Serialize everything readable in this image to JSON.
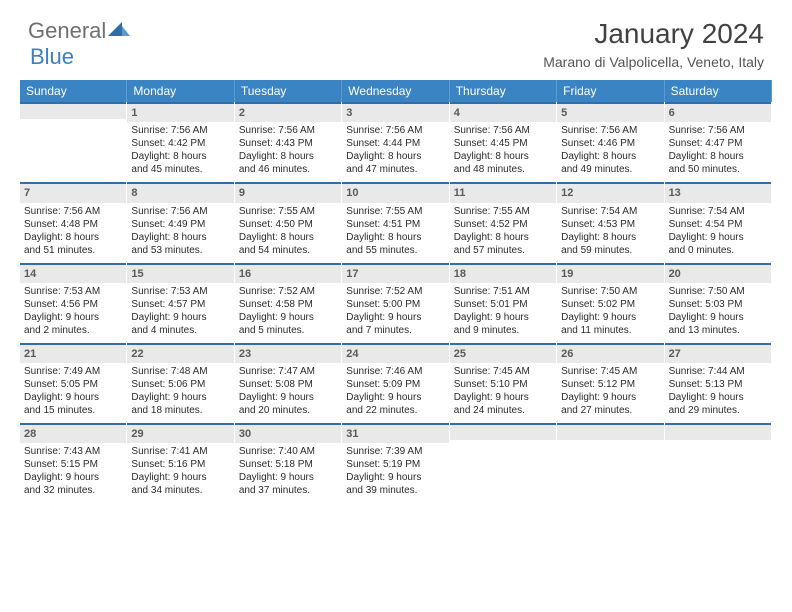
{
  "brand": {
    "part1": "General",
    "part2": "Blue"
  },
  "title": "January 2024",
  "subtitle": "Marano di Valpolicella, Veneto, Italy",
  "colors": {
    "header_bar": "#3b84c4",
    "band_bg": "#e9e9e9",
    "band_border": "#2f6ea8",
    "logo_gray": "#6f6f6f",
    "logo_blue": "#3b7fc4"
  },
  "dow": [
    "Sunday",
    "Monday",
    "Tuesday",
    "Wednesday",
    "Thursday",
    "Friday",
    "Saturday"
  ],
  "weeks": [
    [
      null,
      {
        "n": "1",
        "sr": "Sunrise: 7:56 AM",
        "ss": "Sunset: 4:42 PM",
        "d1": "Daylight: 8 hours",
        "d2": "and 45 minutes."
      },
      {
        "n": "2",
        "sr": "Sunrise: 7:56 AM",
        "ss": "Sunset: 4:43 PM",
        "d1": "Daylight: 8 hours",
        "d2": "and 46 minutes."
      },
      {
        "n": "3",
        "sr": "Sunrise: 7:56 AM",
        "ss": "Sunset: 4:44 PM",
        "d1": "Daylight: 8 hours",
        "d2": "and 47 minutes."
      },
      {
        "n": "4",
        "sr": "Sunrise: 7:56 AM",
        "ss": "Sunset: 4:45 PM",
        "d1": "Daylight: 8 hours",
        "d2": "and 48 minutes."
      },
      {
        "n": "5",
        "sr": "Sunrise: 7:56 AM",
        "ss": "Sunset: 4:46 PM",
        "d1": "Daylight: 8 hours",
        "d2": "and 49 minutes."
      },
      {
        "n": "6",
        "sr": "Sunrise: 7:56 AM",
        "ss": "Sunset: 4:47 PM",
        "d1": "Daylight: 8 hours",
        "d2": "and 50 minutes."
      }
    ],
    [
      {
        "n": "7",
        "sr": "Sunrise: 7:56 AM",
        "ss": "Sunset: 4:48 PM",
        "d1": "Daylight: 8 hours",
        "d2": "and 51 minutes."
      },
      {
        "n": "8",
        "sr": "Sunrise: 7:56 AM",
        "ss": "Sunset: 4:49 PM",
        "d1": "Daylight: 8 hours",
        "d2": "and 53 minutes."
      },
      {
        "n": "9",
        "sr": "Sunrise: 7:55 AM",
        "ss": "Sunset: 4:50 PM",
        "d1": "Daylight: 8 hours",
        "d2": "and 54 minutes."
      },
      {
        "n": "10",
        "sr": "Sunrise: 7:55 AM",
        "ss": "Sunset: 4:51 PM",
        "d1": "Daylight: 8 hours",
        "d2": "and 55 minutes."
      },
      {
        "n": "11",
        "sr": "Sunrise: 7:55 AM",
        "ss": "Sunset: 4:52 PM",
        "d1": "Daylight: 8 hours",
        "d2": "and 57 minutes."
      },
      {
        "n": "12",
        "sr": "Sunrise: 7:54 AM",
        "ss": "Sunset: 4:53 PM",
        "d1": "Daylight: 8 hours",
        "d2": "and 59 minutes."
      },
      {
        "n": "13",
        "sr": "Sunrise: 7:54 AM",
        "ss": "Sunset: 4:54 PM",
        "d1": "Daylight: 9 hours",
        "d2": "and 0 minutes."
      }
    ],
    [
      {
        "n": "14",
        "sr": "Sunrise: 7:53 AM",
        "ss": "Sunset: 4:56 PM",
        "d1": "Daylight: 9 hours",
        "d2": "and 2 minutes."
      },
      {
        "n": "15",
        "sr": "Sunrise: 7:53 AM",
        "ss": "Sunset: 4:57 PM",
        "d1": "Daylight: 9 hours",
        "d2": "and 4 minutes."
      },
      {
        "n": "16",
        "sr": "Sunrise: 7:52 AM",
        "ss": "Sunset: 4:58 PM",
        "d1": "Daylight: 9 hours",
        "d2": "and 5 minutes."
      },
      {
        "n": "17",
        "sr": "Sunrise: 7:52 AM",
        "ss": "Sunset: 5:00 PM",
        "d1": "Daylight: 9 hours",
        "d2": "and 7 minutes."
      },
      {
        "n": "18",
        "sr": "Sunrise: 7:51 AM",
        "ss": "Sunset: 5:01 PM",
        "d1": "Daylight: 9 hours",
        "d2": "and 9 minutes."
      },
      {
        "n": "19",
        "sr": "Sunrise: 7:50 AM",
        "ss": "Sunset: 5:02 PM",
        "d1": "Daylight: 9 hours",
        "d2": "and 11 minutes."
      },
      {
        "n": "20",
        "sr": "Sunrise: 7:50 AM",
        "ss": "Sunset: 5:03 PM",
        "d1": "Daylight: 9 hours",
        "d2": "and 13 minutes."
      }
    ],
    [
      {
        "n": "21",
        "sr": "Sunrise: 7:49 AM",
        "ss": "Sunset: 5:05 PM",
        "d1": "Daylight: 9 hours",
        "d2": "and 15 minutes."
      },
      {
        "n": "22",
        "sr": "Sunrise: 7:48 AM",
        "ss": "Sunset: 5:06 PM",
        "d1": "Daylight: 9 hours",
        "d2": "and 18 minutes."
      },
      {
        "n": "23",
        "sr": "Sunrise: 7:47 AM",
        "ss": "Sunset: 5:08 PM",
        "d1": "Daylight: 9 hours",
        "d2": "and 20 minutes."
      },
      {
        "n": "24",
        "sr": "Sunrise: 7:46 AM",
        "ss": "Sunset: 5:09 PM",
        "d1": "Daylight: 9 hours",
        "d2": "and 22 minutes."
      },
      {
        "n": "25",
        "sr": "Sunrise: 7:45 AM",
        "ss": "Sunset: 5:10 PM",
        "d1": "Daylight: 9 hours",
        "d2": "and 24 minutes."
      },
      {
        "n": "26",
        "sr": "Sunrise: 7:45 AM",
        "ss": "Sunset: 5:12 PM",
        "d1": "Daylight: 9 hours",
        "d2": "and 27 minutes."
      },
      {
        "n": "27",
        "sr": "Sunrise: 7:44 AM",
        "ss": "Sunset: 5:13 PM",
        "d1": "Daylight: 9 hours",
        "d2": "and 29 minutes."
      }
    ],
    [
      {
        "n": "28",
        "sr": "Sunrise: 7:43 AM",
        "ss": "Sunset: 5:15 PM",
        "d1": "Daylight: 9 hours",
        "d2": "and 32 minutes."
      },
      {
        "n": "29",
        "sr": "Sunrise: 7:41 AM",
        "ss": "Sunset: 5:16 PM",
        "d1": "Daylight: 9 hours",
        "d2": "and 34 minutes."
      },
      {
        "n": "30",
        "sr": "Sunrise: 7:40 AM",
        "ss": "Sunset: 5:18 PM",
        "d1": "Daylight: 9 hours",
        "d2": "and 37 minutes."
      },
      {
        "n": "31",
        "sr": "Sunrise: 7:39 AM",
        "ss": "Sunset: 5:19 PM",
        "d1": "Daylight: 9 hours",
        "d2": "and 39 minutes."
      },
      null,
      null,
      null
    ]
  ]
}
